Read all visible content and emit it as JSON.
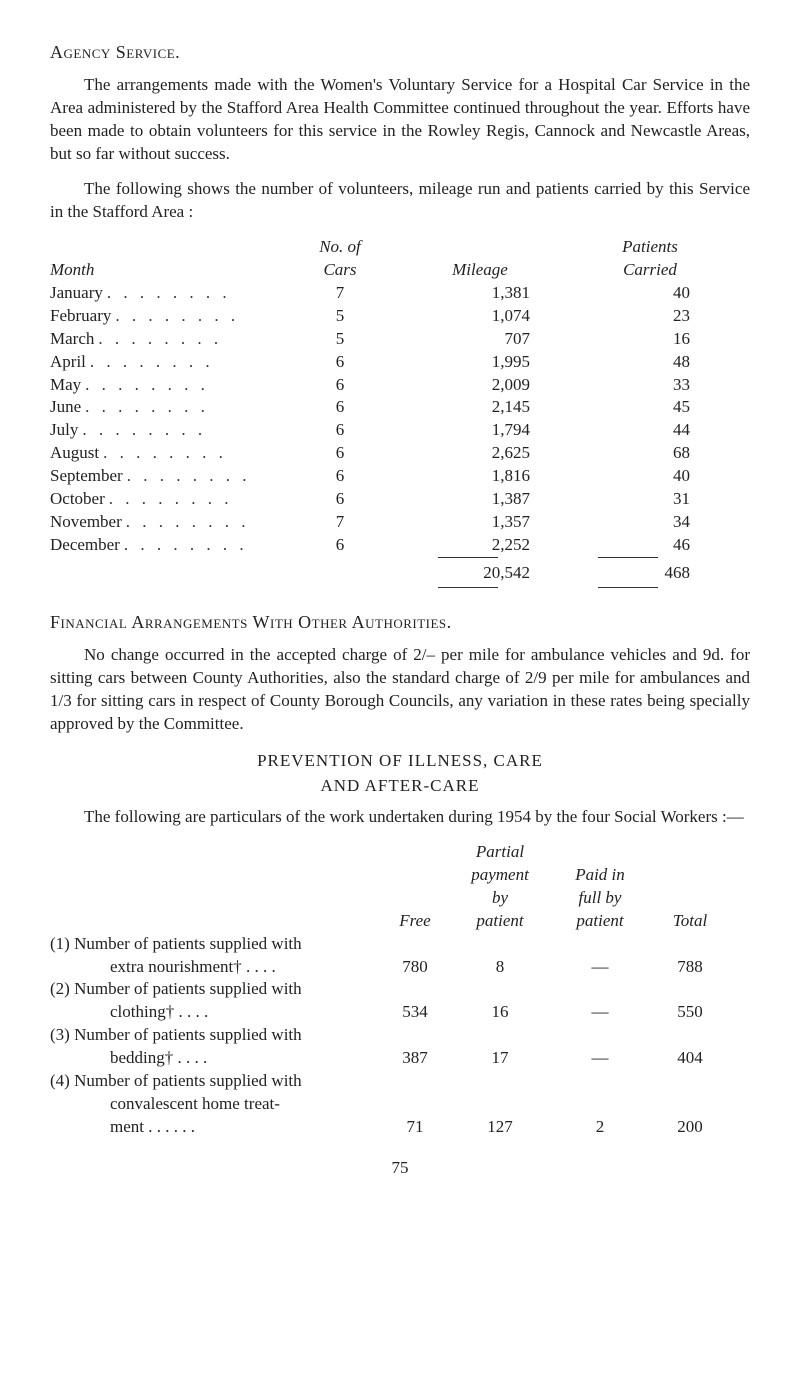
{
  "agency_heading": "Agency Service.",
  "para1": "The arrangements made with the Women's Voluntary Service for a Hospital Car Service in the Area administered by the Stafford Area Health Committee continued throughout the year. Efforts have been made to obtain volunteers for this service in the Rowley Regis, Cannock and Newcastle Areas, but so far without success.",
  "para2": "The following shows the number of volunteers, mileage run and patients carried by this Service in the Stafford Area :",
  "mileage": {
    "header_no_of": "No. of",
    "header_cars": "Cars",
    "header_month": "Month",
    "header_mileage": "Mileage",
    "header_patients_top": "Patients",
    "header_patients_bot": "Carried",
    "rows": [
      {
        "month": "January",
        "cars": "7",
        "mileage": "1,381",
        "patients": "40"
      },
      {
        "month": "February",
        "cars": "5",
        "mileage": "1,074",
        "patients": "23"
      },
      {
        "month": "March",
        "cars": "5",
        "mileage": "707",
        "patients": "16"
      },
      {
        "month": "April",
        "cars": "6",
        "mileage": "1,995",
        "patients": "48"
      },
      {
        "month": "May",
        "cars": "6",
        "mileage": "2,009",
        "patients": "33"
      },
      {
        "month": "June",
        "cars": "6",
        "mileage": "2,145",
        "patients": "45"
      },
      {
        "month": "July",
        "cars": "6",
        "mileage": "1,794",
        "patients": "44"
      },
      {
        "month": "August",
        "cars": "6",
        "mileage": "2,625",
        "patients": "68"
      },
      {
        "month": "September",
        "cars": "6",
        "mileage": "1,816",
        "patients": "40"
      },
      {
        "month": "October",
        "cars": "6",
        "mileage": "1,387",
        "patients": "31"
      },
      {
        "month": "November",
        "cars": "7",
        "mileage": "1,357",
        "patients": "34"
      },
      {
        "month": "December",
        "cars": "6",
        "mileage": "2,252",
        "patients": "46"
      }
    ],
    "total_mileage": "20,542",
    "total_patients": "468"
  },
  "financial_heading": "Financial Arrangements With Other Authorities.",
  "para3": "No change occurred in the accepted charge of 2/– per mile for ambulance vehicles and 9d. for sitting cars between County Authorities, also the standard charge of 2/9 per mile for ambulances and 1/3 for sitting cars in respect of County Borough Councils, any variation in these rates being specially approved by the Committee.",
  "prevention_line1": "PREVENTION OF ILLNESS, CARE",
  "prevention_line2": "AND AFTER-CARE",
  "para4": "The following are particulars of the work undertaken during 1954 by the four Social Workers :—",
  "social": {
    "hdr_free": "Free",
    "hdr_partial_l1": "Partial",
    "hdr_partial_l2": "payment",
    "hdr_partial_l3": "by",
    "hdr_partial_l4": "patient",
    "hdr_paid_l1": "Paid in",
    "hdr_paid_l2": "full by",
    "hdr_paid_l3": "patient",
    "hdr_total": "Total",
    "rows": [
      {
        "num": "(1)",
        "line1": "Number of patients supplied with",
        "line2": "extra nourishment†",
        "free": "780",
        "partial": "8",
        "paid": "—",
        "total": "788"
      },
      {
        "num": "(2)",
        "line1": "Number of patients supplied with",
        "line2": "clothing†",
        "free": "534",
        "partial": "16",
        "paid": "—",
        "total": "550"
      },
      {
        "num": "(3)",
        "line1": "Number of patients supplied with",
        "line2": "bedding†",
        "free": "387",
        "partial": "17",
        "paid": "—",
        "total": "404"
      },
      {
        "num": "(4)",
        "line1": "Number of patients supplied with",
        "line2": "convalescent home treat-",
        "line3": "ment",
        "free": "71",
        "partial": "127",
        "paid": "2",
        "total": "200"
      }
    ]
  },
  "page_number": "75",
  "colors": {
    "text": "#222222",
    "background": "#ffffff",
    "rule": "#333333"
  }
}
